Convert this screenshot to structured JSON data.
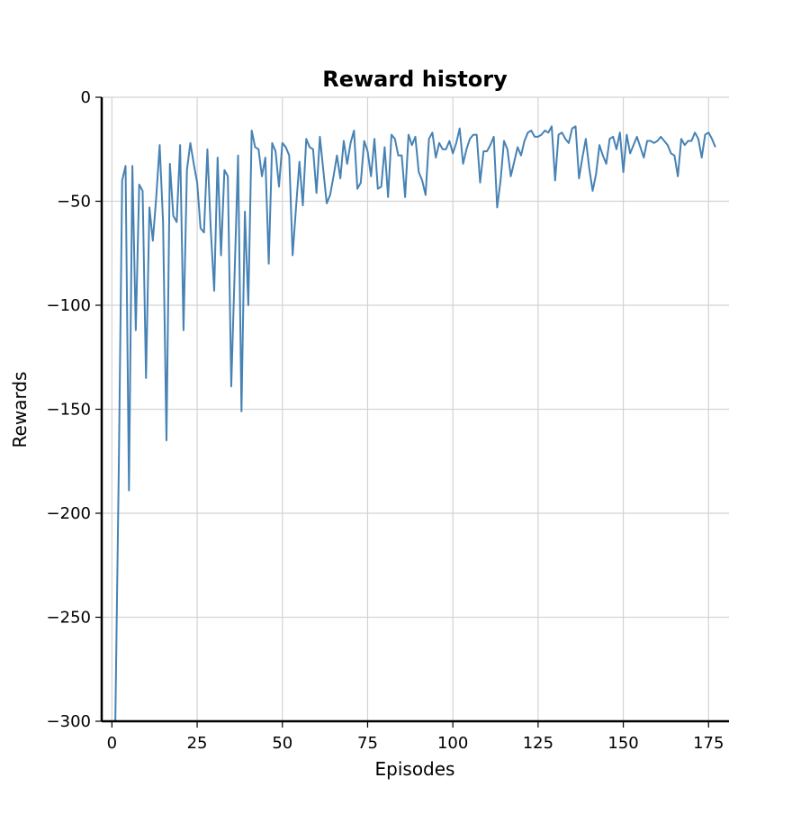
{
  "chart_data": {
    "type": "line",
    "title": "Reward history",
    "xlabel": "Episodes",
    "ylabel": "Rewards",
    "xlim": [
      -3,
      181
    ],
    "ylim": [
      -300,
      0
    ],
    "x_ticks": [
      0,
      25,
      50,
      75,
      100,
      125,
      150,
      175
    ],
    "y_ticks": [
      0,
      -50,
      -100,
      -150,
      -200,
      -250,
      -300
    ],
    "x_tick_labels": [
      "0",
      "25",
      "50",
      "75",
      "100",
      "125",
      "150",
      "175"
    ],
    "y_tick_labels": [
      "0",
      "−50",
      "−100",
      "−150",
      "−200",
      "−250",
      "−300"
    ],
    "grid": true,
    "series": [
      {
        "color": "#4682b4",
        "x": [
          1,
          2,
          3,
          4,
          5,
          6,
          7,
          8,
          9,
          10,
          11,
          12,
          13,
          14,
          15,
          16,
          17,
          18,
          19,
          20,
          21,
          22,
          23,
          24,
          25,
          26,
          27,
          28,
          29,
          30,
          31,
          32,
          33,
          34,
          35,
          36,
          37,
          38,
          39,
          40,
          41,
          42,
          43,
          44,
          45,
          46,
          47,
          48,
          49,
          50,
          51,
          52,
          53,
          54,
          55,
          56,
          57,
          58,
          59,
          60,
          61,
          62,
          63,
          64,
          65,
          66,
          67,
          68,
          69,
          70,
          71,
          72,
          73,
          74,
          75,
          76,
          77,
          78,
          79,
          80,
          81,
          82,
          83,
          84,
          85,
          86,
          87,
          88,
          89,
          90,
          91,
          92,
          93,
          94,
          95,
          96,
          97,
          98,
          99,
          100,
          101,
          102,
          103,
          104,
          105,
          106,
          107,
          108,
          109,
          110,
          111,
          112,
          113,
          114,
          115,
          116,
          117,
          118,
          119,
          120,
          121,
          122,
          123,
          124,
          125,
          126,
          127,
          128,
          129,
          130,
          131,
          132,
          133,
          134,
          135,
          136,
          137,
          138,
          139,
          140,
          141,
          142,
          143,
          144,
          145,
          146,
          147,
          148,
          149,
          150,
          151,
          152,
          153,
          154,
          155,
          156,
          157,
          158,
          159,
          160,
          161,
          162,
          163,
          164,
          165,
          166,
          167,
          168,
          169,
          170,
          171,
          172,
          173,
          174,
          175,
          176,
          177
        ],
        "y": [
          -300,
          -180,
          -40,
          -33,
          -189,
          -33,
          -112,
          -42,
          -45,
          -135,
          -53,
          -69,
          -48,
          -23,
          -60,
          -165,
          -32,
          -57,
          -60,
          -23,
          -112,
          -35,
          -22,
          -32,
          -41,
          -63,
          -65,
          -25,
          -64,
          -93,
          -29,
          -76,
          -35,
          -38,
          -139,
          -84,
          -28,
          -151,
          -55,
          -100,
          -16,
          -24,
          -25,
          -38,
          -29,
          -80,
          -22,
          -26,
          -43,
          -22,
          -24,
          -28,
          -76,
          -53,
          -31,
          -52,
          -20,
          -24,
          -25,
          -46,
          -19,
          -35,
          -51,
          -47,
          -38,
          -28,
          -39,
          -21,
          -32,
          -22,
          -16,
          -44,
          -41,
          -21,
          -26,
          -38,
          -20,
          -44,
          -43,
          -24,
          -48,
          -18,
          -20,
          -28,
          -28,
          -48,
          -18,
          -23,
          -19,
          -36,
          -40,
          -47,
          -20,
          -17,
          -29,
          -22,
          -25,
          -25,
          -21,
          -27,
          -22,
          -15,
          -32,
          -25,
          -20,
          -18,
          -18,
          -41,
          -26,
          -26,
          -23,
          -19,
          -53,
          -40,
          -21,
          -25,
          -38,
          -31,
          -24,
          -28,
          -21,
          -17,
          -16,
          -19,
          -19,
          -18,
          -16,
          -17,
          -14,
          -40,
          -18,
          -17,
          -20,
          -22,
          -15,
          -14,
          -39,
          -29,
          -20,
          -34,
          -45,
          -37,
          -23,
          -28,
          -32,
          -20,
          -19,
          -25,
          -17,
          -36,
          -18,
          -27,
          -23,
          -19,
          -24,
          -29,
          -21,
          -21,
          -22,
          -21,
          -19,
          -21,
          -23,
          -27,
          -28,
          -38,
          -20,
          -23,
          -21,
          -21,
          -17,
          -20,
          -29,
          -18,
          -17,
          -20,
          -24
        ]
      }
    ]
  }
}
